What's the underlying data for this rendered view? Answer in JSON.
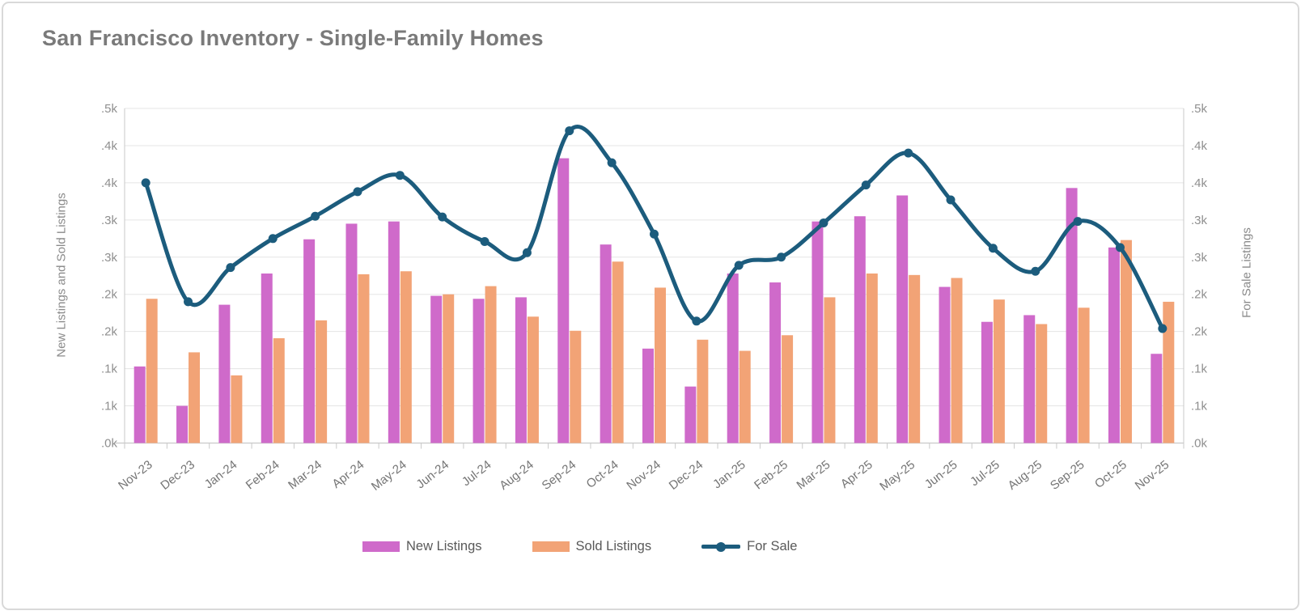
{
  "window": {
    "background": "#ffffff",
    "border_color": "#d9d9d9"
  },
  "header": {
    "title": "San Francisco Inventory  - Single-Family Homes",
    "color": "#7a7a7a"
  },
  "axes": {
    "left": {
      "title": "New Listings and Sold Listings",
      "tick_labels_bottom_to_top": [
        ".0k",
        ".1k",
        ".1k",
        ".2k",
        ".2k",
        ".3k",
        ".3k",
        ".4k",
        ".4k",
        ".5k"
      ]
    },
    "right": {
      "title": "For Sale Listings",
      "tick_labels_bottom_to_top": [
        ".0k",
        ".1k",
        ".1k",
        ".2k",
        ".2k",
        ".3k",
        ".3k",
        ".4k",
        ".4k",
        ".5k"
      ]
    }
  },
  "legend": [
    {
      "label": "New Listings",
      "color": "#cf6aca",
      "type": "bar"
    },
    {
      "label": "Sold Listings",
      "color": "#f2a376",
      "type": "bar"
    },
    {
      "label": "For Sale",
      "color": "#1c5c7d",
      "type": "line"
    }
  ],
  "colors": {
    "new_listings": "#cf6aca",
    "sold_listings": "#f2a376",
    "for_sale_line": "#1c5c7d",
    "gridline": "#e5e5e5",
    "axis_line": "#c9c9c9",
    "tick_text": "#8f8f8f",
    "month_text": "#757575"
  },
  "chart_data": {
    "type": "bar+line",
    "title": "San Francisco Inventory - Single-Family Homes",
    "categories": [
      "Nov-23",
      "Dec-23",
      "Jan-24",
      "Feb-24",
      "Mar-24",
      "Apr-24",
      "May-24",
      "Jun-24",
      "Jul-24",
      "Aug-24",
      "Sep-24",
      "Oct-24",
      "Nov-24",
      "Dec-24",
      "Jan-25",
      "Feb-25",
      "Mar-25",
      "Apr-25",
      "May-25",
      "Jun-25",
      "Jul-25",
      "Aug-25",
      "Sep-25",
      "Oct-25",
      "Nov-25"
    ],
    "series": [
      {
        "name": "New Listings",
        "type": "bar",
        "axis": "left",
        "color": "#cf6aca",
        "values": [
          103,
          50,
          186,
          228,
          274,
          295,
          298,
          198,
          194,
          196,
          383,
          267,
          127,
          76,
          228,
          216,
          298,
          305,
          333,
          210,
          163,
          172,
          343,
          263,
          120
        ]
      },
      {
        "name": "Sold Listings",
        "type": "bar",
        "axis": "left",
        "color": "#f2a376",
        "values": [
          194,
          122,
          91,
          141,
          165,
          227,
          231,
          200,
          211,
          170,
          151,
          244,
          209,
          139,
          124,
          145,
          196,
          228,
          226,
          222,
          193,
          160,
          182,
          273,
          190
        ]
      },
      {
        "name": "For Sale",
        "type": "line",
        "axis": "right",
        "color": "#1c5c7d",
        "values": [
          350,
          190,
          236,
          275,
          305,
          338,
          360,
          304,
          271,
          256,
          420,
          377,
          281,
          164,
          239,
          250,
          296,
          347,
          390,
          327,
          262,
          231,
          298,
          263,
          154
        ]
      }
    ],
    "ylabel_left": "New Listings and Sold Listings",
    "ylabel_right": "For Sale Listings",
    "ylim": [
      0,
      450
    ],
    "ytick_step": 50,
    "ytick_display_bottom_to_top": [
      ".0k",
      ".1k",
      ".1k",
      ".2k",
      ".2k",
      ".3k",
      ".3k",
      ".4k",
      ".4k",
      ".5k"
    ],
    "grid": true,
    "legend_position": "bottom"
  }
}
